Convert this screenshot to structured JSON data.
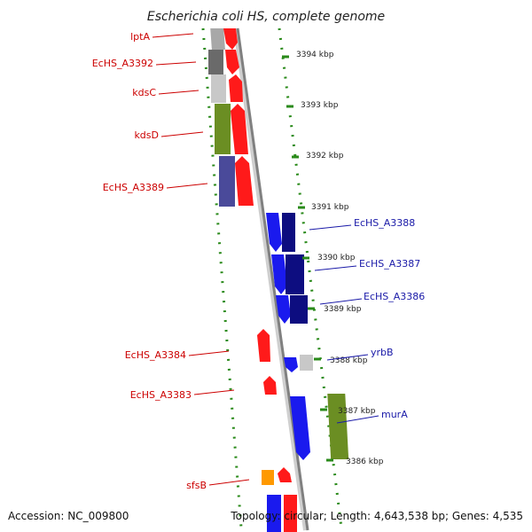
{
  "title": "Escherichia coli HS, complete genome",
  "footer": {
    "accession": "Accession: NC_009800",
    "topology": "Topology: circular; Length: 4,643,538 bp; Genes: 4,535"
  },
  "colors": {
    "backbone": "#8a8a8a",
    "guide_dots": "#2a8a1a",
    "left_label": "#cc0000",
    "right_label": "#1a1aa8",
    "red": "#ff1a1a",
    "blue": "#1a1aee",
    "navy": "#0d0d80",
    "olive": "#6b8e23",
    "slate": "#4a4a9a",
    "dark_gray": "#6a6a6a",
    "light_gray": "#c8c8c8",
    "orange": "#ff9900"
  },
  "ticks": [
    {
      "label": "3394 kbp"
    },
    {
      "label": "3393 kbp"
    },
    {
      "label": "3392 kbp"
    },
    {
      "label": "3391 kbp"
    },
    {
      "label": "3390 kbp"
    },
    {
      "label": "3389 kbp"
    },
    {
      "label": "3388 kbp"
    },
    {
      "label": "3387 kbp"
    },
    {
      "label": "3386 kbp"
    }
  ],
  "left_labels": [
    {
      "name": "lptA"
    },
    {
      "name": "EcHS_A3392"
    },
    {
      "name": "kdsC"
    },
    {
      "name": "kdsD"
    },
    {
      "name": "EcHS_A3389"
    },
    {
      "name": "EcHS_A3384"
    },
    {
      "name": "EcHS_A3383"
    },
    {
      "name": "sfsB"
    }
  ],
  "right_labels": [
    {
      "name": "EcHS_A3388"
    },
    {
      "name": "EcHS_A3387"
    },
    {
      "name": "EcHS_A3386"
    },
    {
      "name": "yrbB"
    },
    {
      "name": "murA"
    }
  ]
}
